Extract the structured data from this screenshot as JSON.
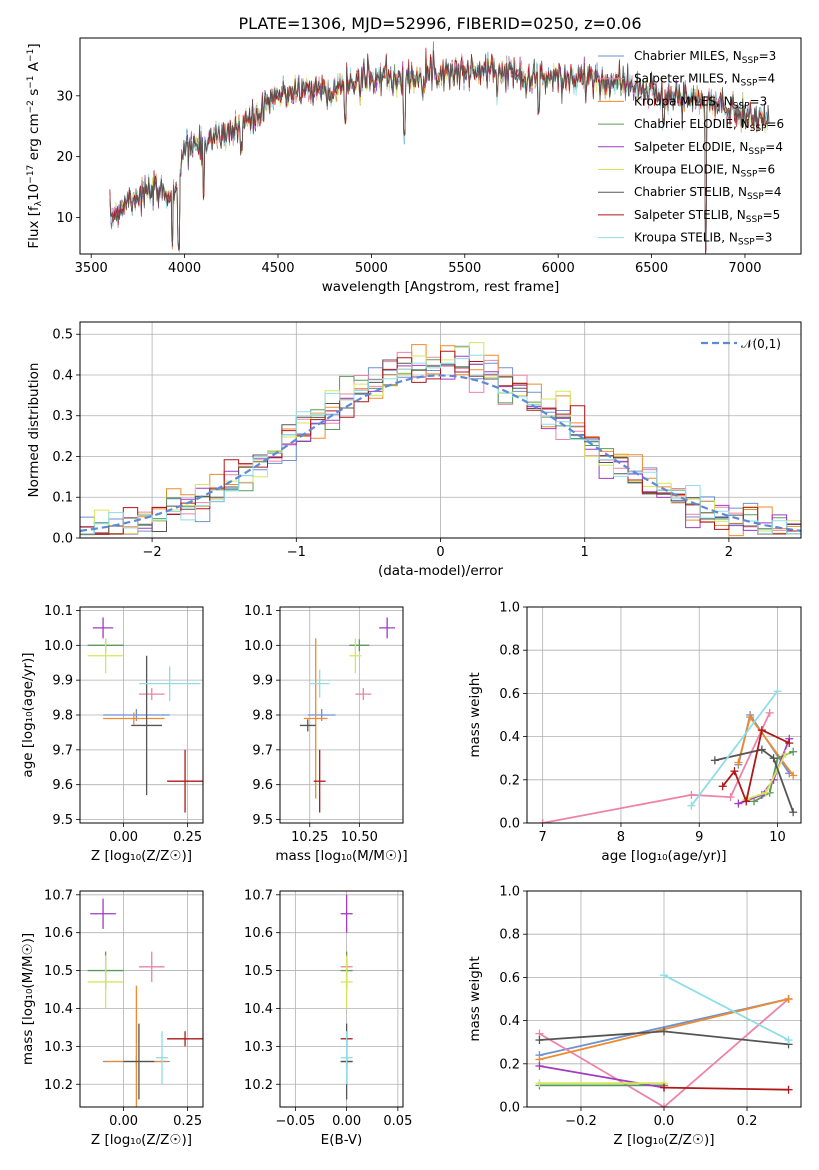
{
  "title": "PLATE=1306, MJD=52996, FIBERID=0250, z=0.06",
  "palette": [
    "#6c92d4",
    "#ee82a8",
    "#f08a2c",
    "#5c9a5c",
    "#a13bc2",
    "#d6e55c",
    "#555555",
    "#b01818",
    "#8fdde6"
  ],
  "legend": [
    {
      "text": "Chabrier MILES, N",
      "sub": "SSP",
      "suffix": "=3"
    },
    {
      "text": "Salpeter MILES, N",
      "sub": "SSP",
      "suffix": "=4"
    },
    {
      "text": "Kroupa MILES, N",
      "sub": "SSP",
      "suffix": "=3"
    },
    {
      "text": "Chabrier ELODIE, N",
      "sub": "SSP",
      "suffix": "=6"
    },
    {
      "text": "Salpeter ELODIE, N",
      "sub": "SSP",
      "suffix": "=4"
    },
    {
      "text": "Kroupa ELODIE, N",
      "sub": "SSP",
      "suffix": "=6"
    },
    {
      "text": "Chabrier STELIB, N",
      "sub": "SSP",
      "suffix": "=4"
    },
    {
      "text": "Salpeter STELIB, N",
      "sub": "SSP",
      "suffix": "=5"
    },
    {
      "text": "Kroupa STELIB, N",
      "sub": "SSP",
      "suffix": "=3"
    }
  ],
  "chart_data": [
    {
      "id": "spectrum",
      "type": "line",
      "xlabel": "wavelength [Angstrom, rest frame]",
      "ylabel_parts": [
        "Flux [f",
        "λ",
        "10",
        "−17",
        " erg cm",
        "−2",
        " s",
        "−1",
        " A",
        "−1",
        "]"
      ],
      "xlim": [
        3440,
        7300
      ],
      "ylim": [
        4,
        39.5
      ],
      "xticks": [
        3500,
        4000,
        4500,
        5000,
        5500,
        6000,
        6500,
        7000
      ],
      "yticks": [
        10,
        20,
        30
      ],
      "x_range": [
        3600,
        7130
      ],
      "continuum": [
        [
          3600,
          10
        ],
        [
          3700,
          13
        ],
        [
          3800,
          14
        ],
        [
          3950,
          14
        ],
        [
          4000,
          21
        ],
        [
          4150,
          23
        ],
        [
          4300,
          25
        ],
        [
          4400,
          27
        ],
        [
          4500,
          30
        ],
        [
          4600,
          31
        ],
        [
          4800,
          31
        ],
        [
          5000,
          33
        ],
        [
          5200,
          33
        ],
        [
          5300,
          34
        ],
        [
          5500,
          34
        ],
        [
          5700,
          34
        ],
        [
          5900,
          33
        ],
        [
          6100,
          33
        ],
        [
          6300,
          32
        ],
        [
          6600,
          30
        ],
        [
          6800,
          29
        ],
        [
          7100,
          26
        ]
      ],
      "features": [
        [
          3934,
          5
        ],
        [
          3969,
          5
        ],
        [
          4102,
          13
        ],
        [
          4305,
          20
        ],
        [
          4861,
          25
        ],
        [
          5175,
          23
        ],
        [
          5895,
          27
        ],
        [
          6563,
          25
        ],
        [
          6790,
          4
        ]
      ]
    },
    {
      "id": "residuals",
      "type": "histogram",
      "xlabel": "(data-model)/error",
      "ylabel": "Normed distribution",
      "xlim": [
        -2.5,
        2.5
      ],
      "ylim": [
        0,
        0.53
      ],
      "xticks": [
        -2,
        -1,
        0,
        1,
        2
      ],
      "yticks": [
        0.0,
        0.1,
        0.2,
        0.3,
        0.4,
        0.5
      ],
      "bin_width": 0.1,
      "gauss_label": "𝒩(0,1)"
    },
    {
      "id": "age_vs_Z",
      "type": "scatter",
      "xlabel": "Z [log₁₀(Z/Z☉)]",
      "ylabel": "age  [log₁₀(age/yr)]",
      "xlim": [
        -0.17,
        0.31
      ],
      "ylim": [
        9.49,
        10.11
      ],
      "xticks": [
        0.0,
        0.25
      ],
      "yticks": [
        9.5,
        9.6,
        9.7,
        9.8,
        9.9,
        10.0,
        10.1
      ],
      "points": [
        {
          "x": 0.05,
          "y": 9.8,
          "xerr": 0.13,
          "yerr": 0.0
        },
        {
          "x": 0.11,
          "y": 9.86,
          "xerr": 0.05,
          "yerr": 0.0
        },
        {
          "x": 0.04,
          "y": 9.79,
          "xerr": 0.12,
          "yerr": 0.0
        },
        {
          "x": -0.07,
          "y": 10.0,
          "xerr": 0.07,
          "yerr": 0.0
        },
        {
          "x": -0.08,
          "y": 10.05,
          "xerr": 0.04,
          "yerr": 0.03
        },
        {
          "x": -0.07,
          "y": 9.97,
          "xerr": 0.07,
          "yerr": 0.05
        },
        {
          "x": 0.09,
          "y": 9.77,
          "xerr": 0.06,
          "yerr": 0.2
        },
        {
          "x": 0.24,
          "y": 9.61,
          "xerr": 0.07,
          "yerr": 0.09
        },
        {
          "x": 0.18,
          "y": 9.89,
          "xerr": 0.12,
          "yerr": 0.05
        }
      ]
    },
    {
      "id": "age_vs_mass",
      "type": "scatter",
      "xlabel": "mass [log₁₀(M/M☉)]",
      "ylabel": "",
      "xlim": [
        10.1,
        10.72
      ],
      "ylim": [
        9.49,
        10.11
      ],
      "xticks": [
        10.25,
        10.5
      ],
      "yticks": [
        9.5,
        9.6,
        9.7,
        9.8,
        9.9,
        10.0,
        10.1
      ],
      "points": [
        {
          "x": 10.31,
          "y": 9.8,
          "xerr": 0.07,
          "yerr": 0.0
        },
        {
          "x": 10.52,
          "y": 9.86,
          "xerr": 0.04,
          "yerr": 0.0
        },
        {
          "x": 10.28,
          "y": 9.79,
          "xerr": 0.06,
          "yerr": 0.23
        },
        {
          "x": 10.5,
          "y": 10.0,
          "xerr": 0.05,
          "yerr": 0.0
        },
        {
          "x": 10.64,
          "y": 10.05,
          "xerr": 0.04,
          "yerr": 0.03
        },
        {
          "x": 10.48,
          "y": 9.97,
          "xerr": 0.03,
          "yerr": 0.05
        },
        {
          "x": 10.24,
          "y": 9.77,
          "xerr": 0.04,
          "yerr": 0.0
        },
        {
          "x": 10.3,
          "y": 9.61,
          "xerr": 0.03,
          "yerr": 0.09
        },
        {
          "x": 10.3,
          "y": 9.89,
          "xerr": 0.05,
          "yerr": 0.04
        }
      ]
    },
    {
      "id": "weight_vs_age",
      "type": "line",
      "xlabel": "age  [log₁₀(age/yr)]",
      "ylabel": "mass weight",
      "xlim": [
        6.8,
        10.3
      ],
      "ylim": [
        0,
        1
      ],
      "xticks": [
        7,
        8,
        9,
        10
      ],
      "yticks": [
        0.0,
        0.2,
        0.4,
        0.6,
        0.8,
        1.0
      ],
      "series": [
        {
          "points": [
            [
              9.5,
              0.27
            ],
            [
              9.65,
              0.5
            ],
            [
              10.15,
              0.23
            ]
          ]
        },
        {
          "points": [
            [
              7.0,
              0.0
            ],
            [
              8.9,
              0.13
            ],
            [
              9.4,
              0.12
            ],
            [
              9.9,
              0.51
            ]
          ]
        },
        {
          "points": [
            [
              9.5,
              0.28
            ],
            [
              9.65,
              0.49
            ],
            [
              10.2,
              0.22
            ]
          ]
        },
        {
          "points": [
            [
              9.7,
              0.1
            ],
            [
              9.9,
              0.14
            ],
            [
              10.0,
              0.3
            ],
            [
              10.2,
              0.33
            ]
          ]
        },
        {
          "points": [
            [
              9.5,
              0.09
            ],
            [
              9.8,
              0.13
            ],
            [
              9.95,
              0.2
            ],
            [
              10.15,
              0.39
            ]
          ]
        },
        {
          "points": [
            [
              9.6,
              0.11
            ],
            [
              9.85,
              0.14
            ],
            [
              10.1,
              0.32
            ]
          ]
        },
        {
          "points": [
            [
              9.2,
              0.29
            ],
            [
              9.8,
              0.34
            ],
            [
              9.95,
              0.3
            ],
            [
              10.2,
              0.05
            ]
          ]
        },
        {
          "points": [
            [
              9.3,
              0.17
            ],
            [
              9.45,
              0.24
            ],
            [
              9.6,
              0.1
            ],
            [
              9.8,
              0.43
            ],
            [
              10.15,
              0.37
            ]
          ]
        },
        {
          "points": [
            [
              8.9,
              0.08
            ],
            [
              10.0,
              0.61
            ]
          ]
        }
      ]
    },
    {
      "id": "mass_vs_Z",
      "type": "scatter",
      "xlabel": "Z [log₁₀(Z/Z☉)]",
      "ylabel": "mass [log₁₀(M/M☉)]",
      "xlim": [
        -0.17,
        0.31
      ],
      "ylim": [
        10.14,
        10.71
      ],
      "xticks": [
        0.0,
        0.25
      ],
      "yticks": [
        10.2,
        10.3,
        10.4,
        10.5,
        10.6,
        10.7
      ],
      "points": [
        {
          "x": 0.05,
          "y": 10.26,
          "xerr": 0.13,
          "yerr": 0.0
        },
        {
          "x": 0.11,
          "y": 10.51,
          "xerr": 0.05,
          "yerr": 0.04
        },
        {
          "x": 0.05,
          "y": 10.26,
          "xerr": 0.12,
          "yerr": 0.2
        },
        {
          "x": -0.07,
          "y": 10.5,
          "xerr": 0.07,
          "yerr": 0.05
        },
        {
          "x": -0.08,
          "y": 10.65,
          "xerr": 0.05,
          "yerr": 0.04
        },
        {
          "x": -0.07,
          "y": 10.47,
          "xerr": 0.07,
          "yerr": 0.07
        },
        {
          "x": 0.06,
          "y": 10.26,
          "xerr": 0.06,
          "yerr": 0.1
        },
        {
          "x": 0.24,
          "y": 10.32,
          "xerr": 0.07,
          "yerr": 0.02
        },
        {
          "x": 0.15,
          "y": 10.27,
          "xerr": 0.0,
          "yerr": 0.07
        }
      ]
    },
    {
      "id": "mass_vs_ebv",
      "type": "scatter",
      "xlabel": "E(B-V)",
      "ylabel": "",
      "xlim": [
        -0.065,
        0.055
      ],
      "ylim": [
        10.14,
        10.71
      ],
      "xticks": [
        -0.05,
        0.0,
        0.05
      ],
      "yticks": [
        10.2,
        10.3,
        10.4,
        10.5,
        10.6,
        10.7
      ],
      "points": [
        {
          "x": 0,
          "y": 10.26,
          "xerr": 0,
          "yerr": 0.0
        },
        {
          "x": 0,
          "y": 10.51,
          "xerr": 0,
          "yerr": 0.0
        },
        {
          "x": 0,
          "y": 10.26,
          "xerr": 0,
          "yerr": 0.0
        },
        {
          "x": 0,
          "y": 10.5,
          "xerr": 0,
          "yerr": 0.05
        },
        {
          "x": 0,
          "y": 10.65,
          "xerr": 0,
          "yerr": 0.05
        },
        {
          "x": 0,
          "y": 10.47,
          "xerr": 0,
          "yerr": 0.07
        },
        {
          "x": 0,
          "y": 10.26,
          "xerr": 0,
          "yerr": 0.1
        },
        {
          "x": 0,
          "y": 10.32,
          "xerr": 0,
          "yerr": 0.02
        },
        {
          "x": 0,
          "y": 10.27,
          "xerr": 0,
          "yerr": 0.07
        }
      ]
    },
    {
      "id": "weight_vs_Z",
      "type": "line",
      "xlabel": "Z [log₁₀(Z/Z☉)]",
      "ylabel": "mass weight",
      "xlim": [
        -0.33,
        0.33
      ],
      "ylim": [
        0,
        1
      ],
      "xticks": [
        -0.2,
        0.0,
        0.2
      ],
      "yticks": [
        0.0,
        0.2,
        0.4,
        0.6,
        0.8,
        1.0
      ],
      "series": [
        {
          "points": [
            [
              -0.3,
              0.24
            ],
            [
              0.3,
              0.5
            ]
          ]
        },
        {
          "points": [
            [
              -0.3,
              0.34
            ],
            [
              0.0,
              0.0
            ],
            [
              0.3,
              0.5
            ]
          ]
        },
        {
          "points": [
            [
              -0.3,
              0.22
            ],
            [
              0.3,
              0.5
            ]
          ]
        },
        {
          "points": [
            [
              -0.3,
              0.1
            ],
            [
              0.0,
              0.1
            ]
          ]
        },
        {
          "points": [
            [
              -0.3,
              0.19
            ],
            [
              0.0,
              0.09
            ]
          ]
        },
        {
          "points": [
            [
              -0.3,
              0.11
            ],
            [
              0.0,
              0.11
            ]
          ]
        },
        {
          "points": [
            [
              -0.3,
              0.31
            ],
            [
              0.0,
              0.35
            ],
            [
              0.3,
              0.29
            ]
          ]
        },
        {
          "points": [
            [
              0.0,
              0.09
            ],
            [
              0.3,
              0.08
            ]
          ]
        },
        {
          "points": [
            [
              0.0,
              0.61
            ],
            [
              0.3,
              0.31
            ]
          ]
        }
      ]
    }
  ]
}
